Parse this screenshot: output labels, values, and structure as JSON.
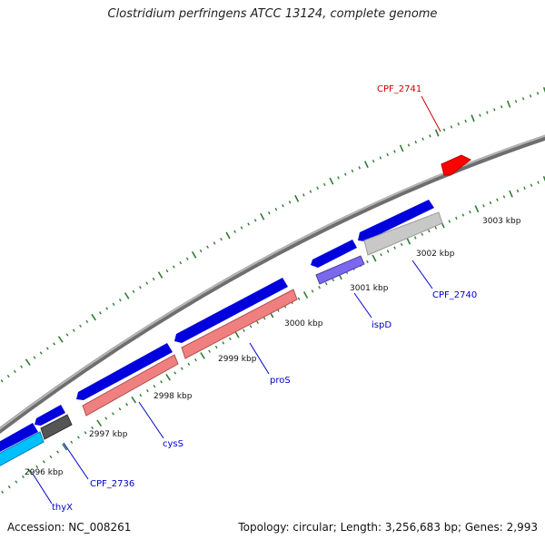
{
  "title": "Clostridium perfringens ATCC 13124, complete genome",
  "footer": {
    "accession": "Accession: NC_008261",
    "summary": "Topology: circular; Length: 3,256,683 bp; Genes: 2,993"
  },
  "colors": {
    "backbone": "#8c8c8c",
    "tick": "#2e7d32",
    "cds_forward": "#0000dd",
    "cds_highlight": "#ff0000",
    "rna_salmon": "#f08080",
    "gene_purple": "#7b68ee",
    "gene_cyan": "#00bfff",
    "gene_grey": "#555555",
    "gene_lightgrey": "#c8c8c8",
    "label_blue": "#0000cc",
    "label_red": "#cc0000"
  },
  "scale_labels": [
    "2996 kbp",
    "2997 kbp",
    "2998 kbp",
    "2999 kbp",
    "3000 kbp",
    "3001 kbp",
    "3002 kbp",
    "3003 kbp"
  ],
  "gene_labels": [
    {
      "name": "CPF_2741",
      "color": "red"
    },
    {
      "name": "CPF_2740",
      "color": "blue"
    },
    {
      "name": "ispD",
      "color": "blue"
    },
    {
      "name": "proS",
      "color": "blue"
    },
    {
      "name": "cysS",
      "color": "blue"
    },
    {
      "name": "CPF_2736",
      "color": "blue"
    },
    {
      "name": "thyX",
      "color": "blue"
    }
  ]
}
